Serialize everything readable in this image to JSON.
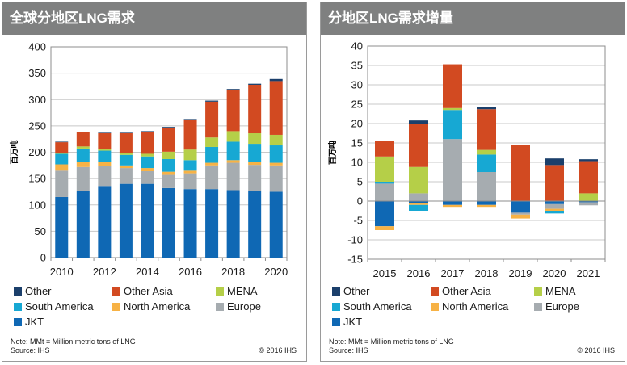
{
  "colors": {
    "Other": "#1b3f6b",
    "Other Asia": "#d24a21",
    "MENA": "#b5cf48",
    "South America": "#17a8d3",
    "North America": "#f7b245",
    "Europe": "#a6acb0",
    "JKT": "#0f68b4",
    "header": "#7f8080"
  },
  "left": {
    "title": "全球分地区LNG需求",
    "note_line1": "Note: MMt = Million metric tons of LNG",
    "note_line2": "Source: IHS",
    "copyright": "© 2016 IHS"
  },
  "right": {
    "title": "分地区LNG需求增量",
    "note_line1": "Note: MMt = Million metric tons of LNG",
    "note_line2": "Source: IHS",
    "copyright": "© 2016 IHS"
  },
  "legend": [
    "Other",
    "Other Asia",
    "MENA",
    "South America",
    "North America",
    "Europe",
    "JKT"
  ],
  "chart_data": [
    {
      "type": "bar",
      "stacked": true,
      "title": "全球分地区LNG需求",
      "ylabel": "百万吨",
      "xlabel": "",
      "ylim": [
        0,
        400
      ],
      "yticks": [
        0,
        50,
        100,
        150,
        200,
        250,
        300,
        350,
        400
      ],
      "grid": true,
      "categories": [
        "2010",
        "2011",
        "2012",
        "2013",
        "2014",
        "2015",
        "2016",
        "2017",
        "2018",
        "2019",
        "2020"
      ],
      "xtick_labels": [
        "2010",
        "2012",
        "2014",
        "2016",
        "2018",
        "2020"
      ],
      "series": [
        {
          "name": "JKT",
          "values": [
            115,
            126,
            136,
            140,
            140,
            132,
            130,
            130,
            128,
            126,
            125
          ]
        },
        {
          "name": "Europe",
          "values": [
            50,
            46,
            38,
            30,
            24,
            25,
            30,
            45,
            52,
            50,
            50
          ]
        },
        {
          "name": "North America",
          "values": [
            12,
            10,
            7,
            5,
            6,
            6,
            5,
            5,
            5,
            5,
            5
          ]
        },
        {
          "name": "South America",
          "values": [
            20,
            25,
            22,
            20,
            22,
            24,
            20,
            30,
            35,
            35,
            33
          ]
        },
        {
          "name": "MENA",
          "values": [
            2,
            4,
            3,
            3,
            5,
            14,
            20,
            18,
            20,
            20,
            20
          ]
        },
        {
          "name": "Other Asia",
          "values": [
            20,
            27,
            30,
            38,
            42,
            45,
            56,
            68,
            78,
            92,
            102
          ]
        },
        {
          "name": "Other",
          "values": [
            1,
            1,
            1,
            1,
            1,
            2,
            2,
            2,
            2,
            2,
            4
          ]
        }
      ]
    },
    {
      "type": "bar",
      "stacked": true,
      "title": "分地区LNG需求增量",
      "ylabel": "百万吨",
      "xlabel": "",
      "ylim": [
        -15,
        40
      ],
      "yticks": [
        -15,
        -10,
        -5,
        0,
        5,
        10,
        15,
        20,
        25,
        30,
        35,
        40
      ],
      "grid": true,
      "categories": [
        "2015",
        "2016",
        "2017",
        "2018",
        "2019",
        "2020",
        "2021"
      ],
      "series": [
        {
          "name": "JKT",
          "values": [
            -6.5,
            -0.5,
            -1.0,
            -1.0,
            -3.0,
            -0.8,
            -0.3
          ]
        },
        {
          "name": "Europe",
          "values": [
            4.5,
            2.0,
            16.0,
            7.5,
            -0.5,
            -1.2,
            -0.8
          ]
        },
        {
          "name": "North America",
          "values": [
            -1.0,
            -0.5,
            -0.5,
            -0.5,
            -1.0,
            -0.5,
            0.0
          ]
        },
        {
          "name": "South America",
          "values": [
            0.5,
            -1.5,
            7.5,
            4.5,
            0.0,
            -0.7,
            0.0
          ]
        },
        {
          "name": "MENA",
          "values": [
            6.5,
            6.8,
            0.5,
            1.2,
            0.0,
            0.0,
            2.0
          ]
        },
        {
          "name": "Other Asia",
          "values": [
            4.0,
            11.0,
            11.3,
            10.5,
            14.5,
            9.3,
            8.3
          ]
        },
        {
          "name": "Other",
          "values": [
            0.0,
            1.0,
            0.0,
            0.5,
            0.0,
            1.7,
            0.5
          ]
        }
      ]
    }
  ]
}
